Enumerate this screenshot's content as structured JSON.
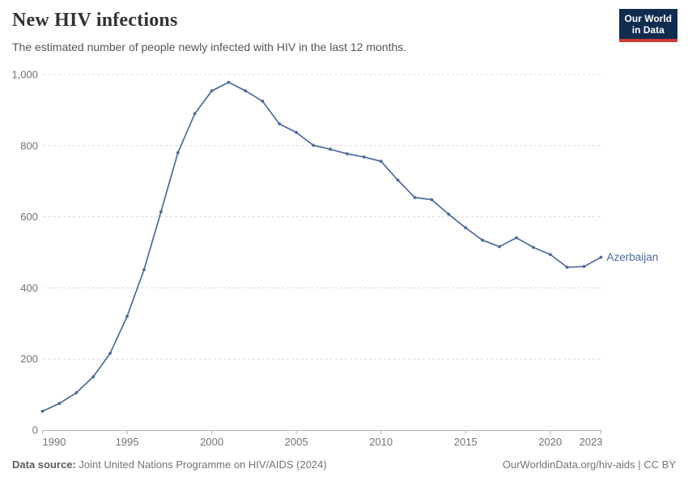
{
  "header": {
    "title": "New HIV infections",
    "subtitle": "The estimated number of people newly infected with HIV in the last 12 months.",
    "logo_line1": "Our World",
    "logo_line2": "in Data"
  },
  "chart_data": {
    "type": "line",
    "title": "New HIV infections",
    "xlabel": "",
    "ylabel": "",
    "x_range": [
      1990,
      2023
    ],
    "ylim": [
      0,
      1000
    ],
    "y_ticks": [
      0,
      200,
      400,
      600,
      800,
      1000
    ],
    "x_ticks": [
      1990,
      1995,
      2000,
      2005,
      2010,
      2015,
      2020,
      2023
    ],
    "grid": "horizontal-dashed",
    "legend": "inline-entity-label",
    "x": [
      1990,
      1991,
      1992,
      1993,
      1994,
      1995,
      1996,
      1997,
      1998,
      1999,
      2000,
      2001,
      2002,
      2003,
      2004,
      2005,
      2006,
      2007,
      2008,
      2009,
      2010,
      2011,
      2012,
      2013,
      2014,
      2015,
      2016,
      2017,
      2018,
      2019,
      2020,
      2021,
      2022,
      2023
    ],
    "series": [
      {
        "name": "Azerbaijan",
        "color": "#4C6A9C",
        "values": [
          53,
          75,
          105,
          150,
          216,
          320,
          451,
          614,
          780,
          890,
          954,
          978,
          954,
          925,
          861,
          837,
          801,
          790,
          777,
          768,
          756,
          703,
          654,
          648,
          607,
          569,
          534,
          516,
          541,
          514,
          494,
          458,
          460,
          486
        ]
      }
    ]
  },
  "colors": {
    "line": "#4C6A9C",
    "grid": "#dcdcdc",
    "axis": "#b3b3b3",
    "tick_label": "#737373",
    "title": "#333333",
    "subtitle": "#575757",
    "footer": "#757575",
    "logo_bg": "#102d50",
    "logo_accent": "#cf3b32"
  },
  "footer": {
    "source_label": "Data source:",
    "source_value": " Joint United Nations Programme on HIV/AIDS (2024)",
    "credit": "OurWorldinData.org/hiv-aids | CC BY"
  }
}
